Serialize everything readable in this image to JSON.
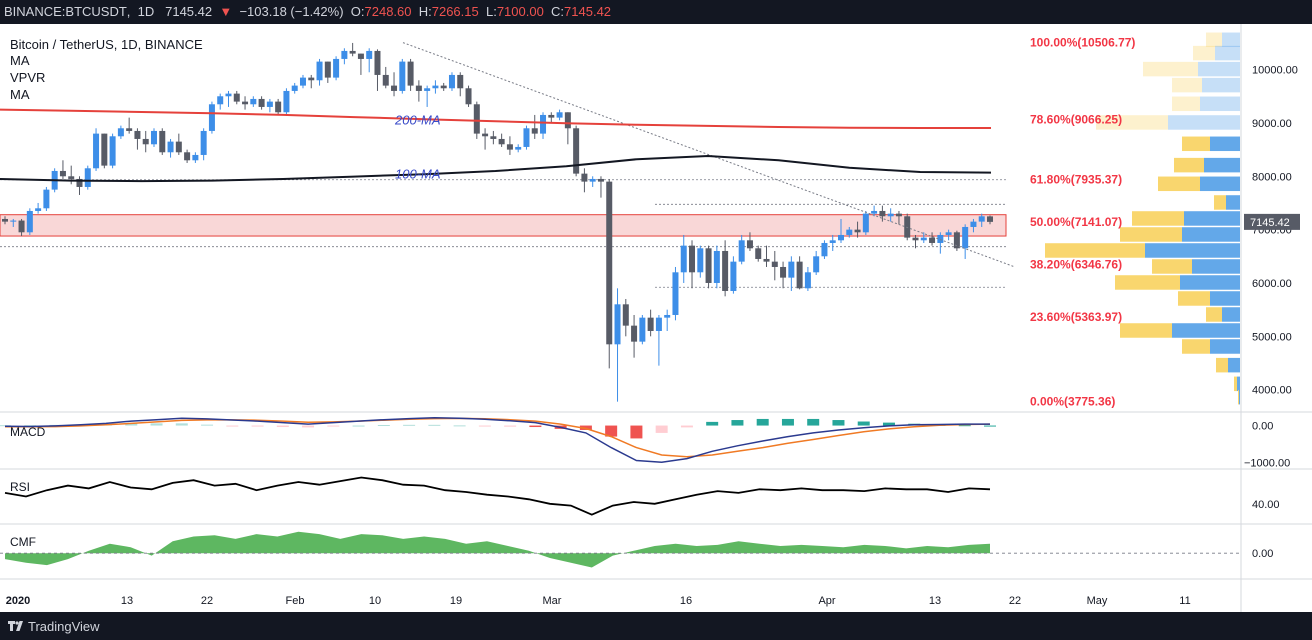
{
  "header": {
    "symbol": "BINANCE:BTCUSDT",
    "interval": "1D",
    "last": "7145.42",
    "change": "−103.18 (−1.42%)",
    "open_label": "O:",
    "open": "7248.60",
    "high_label": "H:",
    "high": "7266.15",
    "low_label": "L:",
    "low": "7100.00",
    "close_label": "C:",
    "close": "7145.42"
  },
  "legend": {
    "title": "Bitcoin / TetherUS, 1D, BINANCE",
    "ind1": "MA",
    "ind2": "VPVR",
    "ind3": "MA"
  },
  "footer": {
    "brand": "TradingView"
  },
  "colors": {
    "up": "#3d8ee8",
    "down": "#575b66",
    "ma200": "#e5413b",
    "ma100": "#131722",
    "fib": "#f23645",
    "zone": "#f9d7d7",
    "vol_up": "#5ba3e8",
    "vol_down": "#f8d15e",
    "macd": "#2b3a8f",
    "signal": "#f07a24",
    "cmf": "#4caf50"
  },
  "chart_data": {
    "type": "candlestick",
    "title": "Bitcoin / TetherUS, 1D, BINANCE",
    "price_axis": {
      "ticks": [
        4000,
        5000,
        6000,
        7000,
        8000,
        9000,
        10000
      ],
      "labels": [
        "4000.00",
        "5000.00",
        "6000.00",
        "7000.00",
        "8000.00",
        "9000.00",
        "10000.00"
      ],
      "range": [
        3600,
        10780
      ]
    },
    "time_axis": {
      "labels": [
        "2020",
        "13",
        "22",
        "Feb",
        "10",
        "19",
        "Mar",
        "16",
        "Apr",
        "13",
        "22",
        "May",
        "11"
      ]
    },
    "last_price_label": "7145.42",
    "candles_ohlc": [
      [
        7200,
        7250,
        7100,
        7150
      ],
      [
        7150,
        7200,
        7050,
        7170
      ],
      [
        7170,
        7200,
        6880,
        6950
      ],
      [
        6950,
        7400,
        6900,
        7350
      ],
      [
        7350,
        7500,
        7300,
        7400
      ],
      [
        7400,
        7800,
        7350,
        7750
      ],
      [
        7750,
        8150,
        7700,
        8100
      ],
      [
        8100,
        8300,
        7950,
        8000
      ],
      [
        8000,
        8200,
        7850,
        7950
      ],
      [
        7950,
        8000,
        7650,
        7800
      ],
      [
        7800,
        8200,
        7750,
        8150
      ],
      [
        8150,
        8900,
        8100,
        8800
      ],
      [
        8800,
        8800,
        8150,
        8200
      ],
      [
        8200,
        8800,
        8150,
        8750
      ],
      [
        8750,
        8950,
        8700,
        8900
      ],
      [
        8900,
        9100,
        8800,
        8850
      ],
      [
        8850,
        8900,
        8500,
        8700
      ],
      [
        8700,
        8850,
        8450,
        8600
      ],
      [
        8600,
        8900,
        8550,
        8850
      ],
      [
        8850,
        8900,
        8400,
        8450
      ],
      [
        8450,
        8700,
        8350,
        8650
      ],
      [
        8650,
        8800,
        8400,
        8450
      ],
      [
        8450,
        8500,
        8250,
        8300
      ],
      [
        8300,
        8450,
        8250,
        8400
      ],
      [
        8400,
        8900,
        8300,
        8850
      ],
      [
        8850,
        9400,
        8800,
        9350
      ],
      [
        9350,
        9550,
        9250,
        9500
      ],
      [
        9500,
        9600,
        9300,
        9550
      ],
      [
        9550,
        9600,
        9350,
        9400
      ],
      [
        9400,
        9500,
        9250,
        9350
      ],
      [
        9350,
        9500,
        9300,
        9450
      ],
      [
        9450,
        9500,
        9250,
        9300
      ],
      [
        9300,
        9450,
        9200,
        9400
      ],
      [
        9400,
        9450,
        9150,
        9200
      ],
      [
        9200,
        9650,
        9150,
        9600
      ],
      [
        9600,
        9750,
        9550,
        9700
      ],
      [
        9700,
        9900,
        9650,
        9850
      ],
      [
        9850,
        9900,
        9650,
        9800
      ],
      [
        9800,
        10200,
        9700,
        10150
      ],
      [
        10150,
        10150,
        9750,
        9850
      ],
      [
        9850,
        10250,
        9800,
        10200
      ],
      [
        10200,
        10400,
        10100,
        10350
      ],
      [
        10350,
        10500,
        10250,
        10300
      ],
      [
        10300,
        10300,
        9900,
        10200
      ],
      [
        10200,
        10400,
        9950,
        10350
      ],
      [
        10350,
        10380,
        9600,
        9900
      ],
      [
        9900,
        10050,
        9650,
        9700
      ],
      [
        9700,
        9950,
        9500,
        9600
      ],
      [
        9600,
        10200,
        9550,
        10150
      ],
      [
        10150,
        10200,
        9600,
        9700
      ],
      [
        9700,
        9800,
        9400,
        9600
      ],
      [
        9600,
        9700,
        9300,
        9650
      ],
      [
        9650,
        9800,
        9550,
        9700
      ],
      [
        9700,
        9750,
        9600,
        9650
      ],
      [
        9650,
        9950,
        9600,
        9900
      ],
      [
        9900,
        9950,
        9500,
        9650
      ],
      [
        9650,
        9700,
        9300,
        9350
      ],
      [
        9350,
        9400,
        8700,
        8800
      ],
      [
        8800,
        8900,
        8500,
        8750
      ],
      [
        8750,
        8850,
        8600,
        8700
      ],
      [
        8700,
        8800,
        8550,
        8600
      ],
      [
        8600,
        8750,
        8400,
        8500
      ],
      [
        8500,
        8600,
        8450,
        8550
      ],
      [
        8550,
        8950,
        8500,
        8900
      ],
      [
        8900,
        9150,
        8700,
        8800
      ],
      [
        8800,
        9200,
        8700,
        9150
      ],
      [
        9150,
        9200,
        9000,
        9100
      ],
      [
        9100,
        9250,
        9050,
        9200
      ],
      [
        9200,
        9200,
        8600,
        8900
      ],
      [
        8900,
        8950,
        8000,
        8050
      ],
      [
        8050,
        8150,
        7700,
        7900
      ],
      [
        7900,
        8000,
        7800,
        7950
      ],
      [
        7950,
        8000,
        7600,
        7900
      ],
      [
        7900,
        7950,
        4400,
        4850
      ],
      [
        4850,
        5900,
        3775,
        5600
      ],
      [
        5600,
        5700,
        5000,
        5200
      ],
      [
        5200,
        5400,
        4600,
        4900
      ],
      [
        4900,
        5400,
        4850,
        5350
      ],
      [
        5350,
        5500,
        5000,
        5100
      ],
      [
        5100,
        5400,
        4450,
        5350
      ],
      [
        5350,
        5500,
        5100,
        5400
      ],
      [
        5400,
        6300,
        5300,
        6200
      ],
      [
        6200,
        6900,
        6000,
        6700
      ],
      [
        6700,
        6800,
        5900,
        6200
      ],
      [
        6200,
        6700,
        6100,
        6650
      ],
      [
        6650,
        6700,
        5900,
        6000
      ],
      [
        6000,
        6700,
        5900,
        6600
      ],
      [
        6600,
        6800,
        5750,
        5850
      ],
      [
        5850,
        6500,
        5800,
        6400
      ],
      [
        6400,
        6900,
        6350,
        6800
      ],
      [
        6800,
        6950,
        6600,
        6650
      ],
      [
        6650,
        6700,
        6400,
        6450
      ],
      [
        6450,
        6700,
        6300,
        6400
      ],
      [
        6400,
        6600,
        6050,
        6300
      ],
      [
        6300,
        6400,
        5900,
        6100
      ],
      [
        6100,
        6500,
        5850,
        6400
      ],
      [
        6400,
        6500,
        5880,
        5900
      ],
      [
        5900,
        6300,
        5850,
        6200
      ],
      [
        6200,
        6600,
        6150,
        6500
      ],
      [
        6500,
        6800,
        6450,
        6750
      ],
      [
        6750,
        6900,
        6600,
        6800
      ],
      [
        6800,
        7200,
        6750,
        6900
      ],
      [
        6900,
        7050,
        6850,
        7000
      ],
      [
        7000,
        7150,
        6850,
        6950
      ],
      [
        6950,
        7350,
        6900,
        7300
      ],
      [
        7300,
        7450,
        7250,
        7350
      ],
      [
        7350,
        7450,
        7150,
        7250
      ],
      [
        7250,
        7400,
        7150,
        7300
      ],
      [
        7300,
        7350,
        7100,
        7250
      ],
      [
        7250,
        7300,
        6800,
        6850
      ],
      [
        6850,
        6900,
        6650,
        6800
      ],
      [
        6800,
        6950,
        6750,
        6850
      ],
      [
        6850,
        6950,
        6700,
        6750
      ],
      [
        6750,
        6950,
        6550,
        6900
      ],
      [
        6900,
        7000,
        6800,
        6950
      ],
      [
        6950,
        6980,
        6600,
        6650
      ],
      [
        6650,
        7100,
        6450,
        7050
      ],
      [
        7050,
        7200,
        6950,
        7150
      ],
      [
        7150,
        7300,
        7050,
        7250
      ],
      [
        7248.6,
        7266.15,
        7100,
        7145.42
      ]
    ],
    "moving_averages": [
      {
        "name": "200-MA",
        "values": [
          9250,
          9230,
          9205,
          9180,
          9150,
          9110,
          9070,
          9030,
          8995,
          8965,
          8945,
          8925,
          8910,
          8905,
          8905
        ]
      },
      {
        "name": "100-MA",
        "values": [
          7950,
          7920,
          7910,
          7920,
          7950,
          7995,
          8040,
          8100,
          8190,
          8320,
          8380,
          8300,
          8160,
          8080,
          8070
        ]
      }
    ],
    "fibonacci": [
      {
        "label": "100.00%(10506.77)",
        "price": 10506.77
      },
      {
        "label": "78.60%(9066.25)",
        "price": 9066.25
      },
      {
        "label": "61.80%(7935.37)",
        "price": 7935.37
      },
      {
        "label": "50.00%(7141.07)",
        "price": 7141.07
      },
      {
        "label": "38.20%(6346.76)",
        "price": 6346.76
      },
      {
        "label": "23.60%(5363.97)",
        "price": 5363.97
      },
      {
        "label": "0.00%(3775.36)",
        "price": 3775.36
      }
    ],
    "ma_labels": [
      "200-MA",
      "100-MA"
    ],
    "resistance_zone": [
      6880,
      7280
    ],
    "volume_profile": [
      {
        "price": 10550,
        "up": 18,
        "down": 16
      },
      {
        "price": 10300,
        "up": 25,
        "down": 22
      },
      {
        "price": 10000,
        "up": 42,
        "down": 55
      },
      {
        "price": 9700,
        "up": 38,
        "down": 30
      },
      {
        "price": 9350,
        "up": 40,
        "down": 28
      },
      {
        "price": 9000,
        "up": 72,
        "down": 72
      },
      {
        "price": 8600,
        "up": 30,
        "down": 28
      },
      {
        "price": 8200,
        "up": 36,
        "down": 30
      },
      {
        "price": 7850,
        "up": 40,
        "down": 42
      },
      {
        "price": 7500,
        "up": 14,
        "down": 12
      },
      {
        "price": 7200,
        "up": 56,
        "down": 52
      },
      {
        "price": 6900,
        "up": 58,
        "down": 62
      },
      {
        "price": 6600,
        "up": 95,
        "down": 100
      },
      {
        "price": 6300,
        "up": 48,
        "down": 40
      },
      {
        "price": 6000,
        "up": 60,
        "down": 65
      },
      {
        "price": 5700,
        "up": 30,
        "down": 32
      },
      {
        "price": 5400,
        "up": 18,
        "down": 16
      },
      {
        "price": 5100,
        "up": 68,
        "down": 52
      },
      {
        "price": 4800,
        "up": 30,
        "down": 28
      },
      {
        "price": 4450,
        "up": 12,
        "down": 12
      },
      {
        "price": 4100,
        "up": 3,
        "down": 3
      },
      {
        "price": 3850,
        "up": 1,
        "down": 1
      }
    ],
    "macd": {
      "label": "MACD",
      "axis": [
        "0.00",
        "−1000.00"
      ],
      "macd_line": [
        -20,
        -25,
        -10,
        20,
        60,
        120,
        160,
        200,
        180,
        150,
        120,
        80,
        40,
        80,
        120,
        160,
        190,
        210,
        200,
        170,
        130,
        80,
        -50,
        -200,
        -600,
        -950,
        -1000,
        -900,
        -700,
        -550,
        -420,
        -300,
        -200,
        -120,
        -60,
        -10,
        20,
        30,
        40,
        40
      ],
      "signal_line": [
        -30,
        -35,
        -28,
        -10,
        20,
        60,
        100,
        140,
        155,
        155,
        145,
        120,
        90,
        100,
        120,
        145,
        170,
        190,
        195,
        185,
        160,
        120,
        40,
        -80,
        -300,
        -600,
        -800,
        -850,
        -800,
        -700,
        -600,
        -480,
        -380,
        -270,
        -170,
        -90,
        -30,
        10,
        30,
        40
      ],
      "histogram": [
        10,
        10,
        18,
        30,
        40,
        60,
        60,
        60,
        25,
        -5,
        -25,
        -40,
        -50,
        -20,
        0,
        15,
        20,
        20,
        5,
        -15,
        -30,
        -40,
        -90,
        -120,
        -300,
        -350,
        -200,
        -50,
        100,
        150,
        180,
        180,
        180,
        150,
        110,
        80,
        50,
        20,
        10,
        0
      ]
    },
    "rsi": {
      "label": "RSI",
      "axis": [
        "40.00"
      ],
      "values": [
        52,
        48,
        55,
        60,
        57,
        64,
        58,
        56,
        63,
        66,
        60,
        62,
        55,
        60,
        64,
        61,
        65,
        69,
        66,
        61,
        60,
        55,
        53,
        50,
        48,
        45,
        40,
        38,
        28,
        38,
        42,
        40,
        45,
        50,
        54,
        52,
        56,
        55,
        57,
        55,
        55,
        54,
        57,
        56,
        56,
        53,
        57,
        56
      ]
    },
    "cmf": {
      "label": "CMF",
      "axis": [
        "0.00"
      ],
      "values": [
        -0.05,
        -0.08,
        -0.1,
        -0.05,
        0.02,
        0.08,
        0.05,
        -0.02,
        0.1,
        0.14,
        0.15,
        0.12,
        0.16,
        0.14,
        0.18,
        0.16,
        0.12,
        0.16,
        0.15,
        0.12,
        0.14,
        0.12,
        0.08,
        0.1,
        0.06,
        0.02,
        -0.04,
        -0.08,
        -0.12,
        -0.02,
        0.02,
        0.06,
        0.08,
        0.06,
        0.07,
        0.1,
        0.08,
        0.06,
        0.07,
        0.06,
        0.05,
        0.07,
        0.06,
        0.04,
        0.06,
        0.05,
        0.07,
        0.08
      ]
    }
  }
}
